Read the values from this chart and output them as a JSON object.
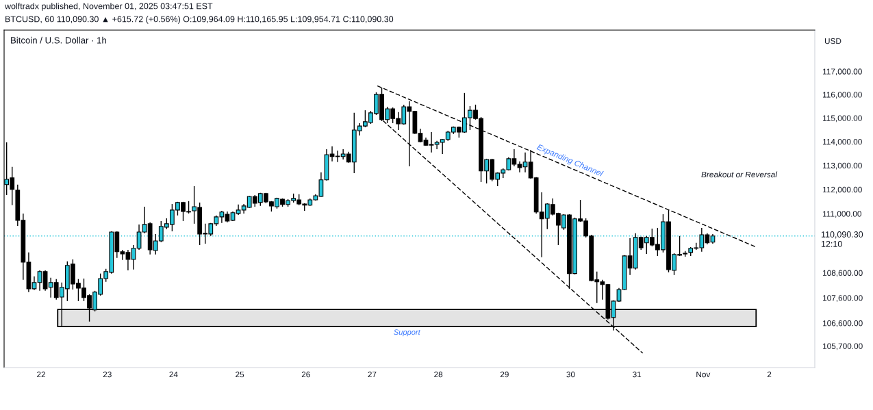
{
  "chart_data": {
    "type": "candlestick",
    "title": "Bitcoin / U.S. Dollar · 1h",
    "ylabel": "USD",
    "annotations": [
      "wolftradx published, November 01, 2025 03:47:51 EST",
      "BTCUSD, 60 110,090.30 ▲ +615.72 (+0.56%) O:109,964.09 H:110,165.95 L:109,954.71 C:110,090.30",
      "Expanding Channel",
      "Breakout or Reversal"
    ],
    "series": [
      {
        "x": [
          "2025-10-21T11:30",
          "2025-10-21T13:30",
          "2025-10-21T15:30",
          "2025-10-21T17:30",
          "2025-10-21T19:30",
          "2025-10-21T21:30",
          "2025-10-21T23:30",
          "2025-10-22T01:30",
          "2025-10-22T03:30",
          "2025-10-22T05:30",
          "2025-10-22T07:30",
          "2025-10-22T09:30",
          "2025-10-22T11:30",
          "2025-10-22T13:30",
          "2025-10-22T15:30",
          "2025-10-22T17:30",
          "2025-10-22T19:30",
          "2025-10-22T21:30",
          "2025-10-22T23:30",
          "2025-10-23T01:30",
          "2025-10-23T03:30",
          "2025-10-23T05:30",
          "2025-10-23T07:30",
          "2025-10-23T09:30",
          "2025-10-23T11:30",
          "2025-10-23T13:30",
          "2025-10-23T15:30",
          "2025-10-23T17:30",
          "2025-10-23T19:30",
          "2025-10-23T21:30",
          "2025-10-23T23:30",
          "2025-10-24T01:30",
          "2025-10-24T03:30",
          "2025-10-24T05:30",
          "2025-10-24T07:30",
          "2025-10-24T09:30",
          "2025-10-24T11:30",
          "2025-10-24T13:30",
          "2025-10-24T15:30",
          "2025-10-24T17:30",
          "2025-10-24T19:30",
          "2025-10-24T21:30",
          "2025-10-24T23:30",
          "2025-10-25T01:30",
          "2025-10-25T03:30",
          "2025-10-25T05:30",
          "2025-10-25T07:30",
          "2025-10-25T09:30",
          "2025-10-25T11:30",
          "2025-10-25T13:30",
          "2025-10-25T15:30",
          "2025-10-25T17:30",
          "2025-10-25T19:30",
          "2025-10-25T21:30",
          "2025-10-25T23:30",
          "2025-10-26T01:30",
          "2025-10-26T03:30",
          "2025-10-26T05:30",
          "2025-10-26T07:30",
          "2025-10-26T09:30",
          "2025-10-26T11:30",
          "2025-10-26T13:30",
          "2025-10-26T15:30",
          "2025-10-26T17:30",
          "2025-10-26T19:30",
          "2025-10-26T21:30",
          "2025-10-26T23:30",
          "2025-10-27T01:30",
          "2025-10-27T03:30",
          "2025-10-27T05:30",
          "2025-10-27T07:30",
          "2025-10-27T09:30",
          "2025-10-27T11:30",
          "2025-10-27T13:30",
          "2025-10-27T15:30",
          "2025-10-27T17:30",
          "2025-10-27T19:30",
          "2025-10-27T21:30",
          "2025-10-27T23:30",
          "2025-10-28T01:30",
          "2025-10-28T03:30",
          "2025-10-28T05:30",
          "2025-10-28T07:30",
          "2025-10-28T09:30",
          "2025-10-28T11:30",
          "2025-10-28T13:30",
          "2025-10-28T15:30",
          "2025-10-28T17:30",
          "2025-10-28T19:30",
          "2025-10-28T21:30",
          "2025-10-28T23:30",
          "2025-10-29T01:30",
          "2025-10-29T03:30",
          "2025-10-29T05:30",
          "2025-10-29T07:30",
          "2025-10-29T09:30",
          "2025-10-29T11:30",
          "2025-10-29T13:30",
          "2025-10-29T15:30",
          "2025-10-29T17:30",
          "2025-10-29T19:30",
          "2025-10-29T21:30",
          "2025-10-29T23:30",
          "2025-10-30T01:30",
          "2025-10-30T03:30",
          "2025-10-30T05:30",
          "2025-10-30T07:30",
          "2025-10-30T09:30",
          "2025-10-30T11:30",
          "2025-10-30T13:30",
          "2025-10-30T15:30",
          "2025-10-30T17:30",
          "2025-10-30T19:30",
          "2025-10-30T21:30",
          "2025-10-30T23:30",
          "2025-10-31T01:30",
          "2025-10-31T03:30",
          "2025-10-31T05:30",
          "2025-10-31T07:30",
          "2025-10-31T09:30",
          "2025-10-31T11:30",
          "2025-10-31T13:30",
          "2025-10-31T15:30",
          "2025-10-31T17:30",
          "2025-10-31T19:30",
          "2025-10-31T21:30",
          "2025-10-31T23:30",
          "2025-11-01T01:30",
          "2025-11-01T03:30"
        ],
        "ohlc": [
          [
            112200,
            113970,
            111770,
            112420
          ],
          [
            112480,
            112940,
            111350,
            112000
          ],
          [
            111970,
            112200,
            110500,
            110730
          ],
          [
            110730,
            111010,
            108320,
            109030
          ],
          [
            109030,
            109420,
            107830,
            107960
          ],
          [
            107960,
            108460,
            107910,
            108210
          ],
          [
            108210,
            108700,
            107880,
            108650
          ],
          [
            108650,
            108700,
            107880,
            107960
          ],
          [
            108020,
            108400,
            107610,
            108210
          ],
          [
            108210,
            108350,
            107530,
            107610
          ],
          [
            107630,
            108210,
            106470,
            108020
          ],
          [
            107960,
            109060,
            107470,
            108900
          ],
          [
            108950,
            109140,
            107930,
            108150
          ],
          [
            108180,
            108350,
            107470,
            107990
          ],
          [
            107990,
            108370,
            107470,
            107610
          ],
          [
            107690,
            107740,
            106660,
            107200
          ],
          [
            107120,
            107880,
            107060,
            107830
          ],
          [
            107740,
            108570,
            107690,
            108370
          ],
          [
            108370,
            108760,
            108240,
            108650
          ],
          [
            108620,
            110280,
            108570,
            110250
          ],
          [
            110250,
            110280,
            109200,
            109450
          ],
          [
            109450,
            109530,
            109120,
            109360
          ],
          [
            109420,
            109530,
            108700,
            109140
          ],
          [
            109140,
            109720,
            108730,
            109590
          ],
          [
            109590,
            110560,
            109530,
            110250
          ],
          [
            110250,
            111290,
            110200,
            110560
          ],
          [
            110590,
            110650,
            109340,
            109530
          ],
          [
            109500,
            110170,
            109340,
            109890
          ],
          [
            109890,
            110700,
            109840,
            110480
          ],
          [
            110450,
            110810,
            110370,
            110590
          ],
          [
            110560,
            111400,
            110280,
            111150
          ],
          [
            111150,
            111490,
            110930,
            111460
          ],
          [
            111460,
            111490,
            110700,
            111090
          ],
          [
            111070,
            111520,
            111010,
            111090
          ],
          [
            111120,
            112140,
            110590,
            111290
          ],
          [
            111260,
            111460,
            109720,
            110170
          ],
          [
            110170,
            110590,
            109780,
            110200
          ],
          [
            110170,
            110620,
            110090,
            110590
          ],
          [
            110590,
            110930,
            110500,
            110870
          ],
          [
            110870,
            111120,
            110620,
            111070
          ],
          [
            110980,
            111090,
            110650,
            110700
          ],
          [
            110730,
            111090,
            110700,
            111040
          ],
          [
            111010,
            111380,
            110950,
            111150
          ],
          [
            111150,
            111400,
            111010,
            111320
          ],
          [
            111260,
            111740,
            111240,
            111710
          ],
          [
            111710,
            111770,
            111290,
            111430
          ],
          [
            111460,
            111860,
            111320,
            111830
          ],
          [
            111830,
            111860,
            111430,
            111490
          ],
          [
            111490,
            111520,
            111090,
            111320
          ],
          [
            111290,
            111660,
            111210,
            111630
          ],
          [
            111600,
            111630,
            111290,
            111380
          ],
          [
            111380,
            111600,
            111290,
            111540
          ],
          [
            111540,
            111830,
            111460,
            111630
          ],
          [
            111570,
            111800,
            111350,
            111400
          ],
          [
            111400,
            111430,
            111120,
            111350
          ],
          [
            111350,
            111630,
            111320,
            111570
          ],
          [
            111570,
            111800,
            111540,
            111740
          ],
          [
            111710,
            112710,
            111690,
            112400
          ],
          [
            112400,
            113680,
            112370,
            113450
          ],
          [
            113480,
            113800,
            113170,
            113370
          ],
          [
            113370,
            113620,
            113140,
            113390
          ],
          [
            113370,
            113680,
            113250,
            113480
          ],
          [
            113480,
            113570,
            113110,
            113140
          ],
          [
            113140,
            115220,
            112680,
            114490
          ],
          [
            114460,
            114780,
            114260,
            114660
          ],
          [
            114660,
            115330,
            114610,
            114840
          ],
          [
            114810,
            115300,
            114750,
            115220
          ],
          [
            115190,
            116100,
            115130,
            116010
          ],
          [
            116010,
            116300,
            114870,
            114930
          ],
          [
            114930,
            115480,
            114780,
            115390
          ],
          [
            115390,
            115450,
            114780,
            114980
          ],
          [
            114980,
            115250,
            114490,
            114750
          ],
          [
            114750,
            115570,
            114720,
            115480
          ],
          [
            115480,
            115710,
            112960,
            115280
          ],
          [
            115280,
            115300,
            114320,
            114350
          ],
          [
            114350,
            114550,
            113970,
            114000
          ],
          [
            114060,
            114170,
            113830,
            113850
          ],
          [
            113850,
            114400,
            113540,
            113880
          ],
          [
            113880,
            114030,
            113680,
            113970
          ],
          [
            113970,
            114110,
            113480,
            114090
          ],
          [
            114090,
            114460,
            114030,
            114400
          ],
          [
            114400,
            114640,
            114320,
            114610
          ],
          [
            114610,
            114640,
            114170,
            114400
          ],
          [
            114400,
            116070,
            114370,
            115010
          ],
          [
            115010,
            115510,
            114490,
            115330
          ],
          [
            115330,
            115570,
            114930,
            114980
          ],
          [
            114980,
            115040,
            112310,
            112770
          ],
          [
            112770,
            113280,
            112250,
            113250
          ],
          [
            113250,
            113280,
            112340,
            112420
          ],
          [
            112420,
            112710,
            112140,
            112680
          ],
          [
            112680,
            112880,
            112480,
            112820
          ],
          [
            112820,
            113340,
            112790,
            113280
          ],
          [
            113280,
            113680,
            112960,
            113050
          ],
          [
            113050,
            113170,
            112710,
            112910
          ],
          [
            112940,
            113540,
            112710,
            113140
          ],
          [
            113140,
            113650,
            112450,
            112480
          ],
          [
            112480,
            112510,
            111010,
            111070
          ],
          [
            111070,
            111880,
            109230,
            110790
          ],
          [
            110810,
            111430,
            110370,
            111400
          ],
          [
            111380,
            111630,
            110930,
            110980
          ],
          [
            111010,
            111040,
            109720,
            110530
          ],
          [
            110420,
            110980,
            110340,
            110950
          ],
          [
            110950,
            110980,
            107960,
            108570
          ],
          [
            108570,
            110840,
            108540,
            110790
          ],
          [
            110790,
            111570,
            110670,
            110700
          ],
          [
            110700,
            110810,
            110030,
            110090
          ],
          [
            110090,
            110140,
            108260,
            108290
          ],
          [
            108320,
            108650,
            107390,
            108240
          ],
          [
            108240,
            108320,
            107530,
            108130
          ],
          [
            108130,
            108150,
            106740,
            106790
          ],
          [
            106820,
            107500,
            106310,
            107470
          ],
          [
            107470,
            107990,
            107440,
            107930
          ],
          [
            107930,
            109310,
            107910,
            109280
          ],
          [
            109280,
            110000,
            108510,
            108790
          ],
          [
            108790,
            110200,
            108730,
            110030
          ],
          [
            110030,
            110060,
            109530,
            109610
          ],
          [
            109810,
            110090,
            109360,
            110030
          ],
          [
            110030,
            110390,
            109670,
            109720
          ],
          [
            109750,
            110420,
            109280,
            109530
          ],
          [
            109530,
            110980,
            109420,
            110670
          ],
          [
            110670,
            111150,
            108620,
            108730
          ],
          [
            108700,
            109390,
            108510,
            109340
          ],
          [
            109310,
            110090,
            109280,
            109340
          ],
          [
            109390,
            109480,
            109250,
            109360
          ],
          [
            109420,
            109640,
            109280,
            109590
          ],
          [
            109590,
            109810,
            109530,
            109610
          ],
          [
            109610,
            110420,
            109450,
            110140
          ],
          [
            110140,
            110200,
            109750,
            109810
          ],
          [
            109840,
            110165.95,
            109780,
            110090.3
          ]
        ],
        "colors": [
          "#26c6da",
          "#000000",
          "#000000",
          "#000000",
          "#000000",
          "#26c6da",
          "#26c6da",
          "#000000",
          "#26c6da",
          "#000000",
          "#26c6da",
          "#26c6da",
          "#000000",
          "#000000",
          "#000000",
          "#000000",
          "#26c6da",
          "#26c6da",
          "#26c6da",
          "#26c6da",
          "#000000",
          "#000000",
          "#000000",
          "#26c6da",
          "#26c6da",
          "#26c6da",
          "#000000",
          "#26c6da",
          "#26c6da",
          "#26c6da",
          "#26c6da",
          "#26c6da",
          "#000000",
          "#26c6da",
          "#26c6da",
          "#000000",
          "#26c6da",
          "#26c6da",
          "#26c6da",
          "#26c6da",
          "#000000",
          "#26c6da",
          "#26c6da",
          "#26c6da",
          "#26c6da",
          "#000000",
          "#26c6da",
          "#000000",
          "#000000",
          "#26c6da",
          "#000000",
          "#26c6da",
          "#26c6da",
          "#000000",
          "#000000",
          "#26c6da",
          "#26c6da",
          "#26c6da",
          "#26c6da",
          "#000000",
          "#26c6da",
          "#26c6da",
          "#000000",
          "#26c6da",
          "#26c6da",
          "#26c6da",
          "#26c6da",
          "#26c6da",
          "#000000",
          "#26c6da",
          "#000000",
          "#000000",
          "#26c6da",
          "#000000",
          "#000000",
          "#000000",
          "#000000",
          "#26c6da",
          "#26c6da",
          "#26c6da",
          "#26c6da",
          "#26c6da",
          "#000000",
          "#26c6da",
          "#26c6da",
          "#000000",
          "#000000",
          "#26c6da",
          "#000000",
          "#26c6da",
          "#26c6da",
          "#26c6da",
          "#000000",
          "#000000",
          "#26c6da",
          "#000000",
          "#000000",
          "#000000",
          "#26c6da",
          "#000000",
          "#000000",
          "#26c6da",
          "#000000",
          "#26c6da",
          "#000000",
          "#000000",
          "#000000",
          "#000000",
          "#000000",
          "#000000",
          "#26c6da",
          "#26c6da",
          "#26c6da",
          "#000000",
          "#26c6da",
          "#000000",
          "#26c6da",
          "#000000",
          "#000000",
          "#26c6da",
          "#000000",
          "#26c6da",
          "#26c6da",
          "#000000",
          "#26c6da",
          "#26c6da",
          "#26c6da",
          "#000000",
          "#26c6da"
        ]
      },
      {
        "type": "line",
        "x": [
          "2025-10-27T02:00",
          "2025-11-01T19:00"
        ],
        "values": [
          116370,
          109650
        ],
        "color": "#000000"
      },
      {
        "type": "line",
        "x": [
          "2025-10-27T04:00",
          "2025-10-31T02:00"
        ],
        "values": [
          114880,
          105430
        ],
        "color": "#000000"
      }
    ],
    "bands": [
      {
        "axis": "y",
        "from": 106460,
        "to": 107140,
        "label": "Support",
        "color": "#e3e3e3"
      }
    ],
    "xlim": [
      "2025-10-21T10:35",
      "2025-11-02T16:30"
    ],
    "xticks": [
      {
        "value": "2025-10-22",
        "label": "22"
      },
      {
        "value": "2025-10-23",
        "label": "23"
      },
      {
        "value": "2025-10-24",
        "label": "24"
      },
      {
        "value": "2025-10-25",
        "label": "25"
      },
      {
        "value": "2025-10-26",
        "label": "26"
      },
      {
        "value": "2025-10-27",
        "label": "27"
      },
      {
        "value": "2025-10-28",
        "label": "28"
      },
      {
        "value": "2025-10-29",
        "label": "29"
      },
      {
        "value": "2025-10-30",
        "label": "30"
      },
      {
        "value": "2025-10-31",
        "label": "31"
      },
      {
        "value": "2025-11-01",
        "label": "Nov"
      },
      {
        "value": "2025-11-02",
        "label": "2"
      }
    ],
    "log": "y",
    "ylim": [
      104860,
      118800
    ],
    "yticks": [
      {
        "value": 117000,
        "label": "117,000.00"
      },
      {
        "value": 116000,
        "label": "116,000.00"
      },
      {
        "value": 115000,
        "label": "115,000.00"
      },
      {
        "value": 114000,
        "label": "114,000.00"
      },
      {
        "value": 113000,
        "label": "113,000.00"
      },
      {
        "value": 112000,
        "label": "112,000.00"
      },
      {
        "value": 111000,
        "label": "111,000.00"
      },
      {
        "value": 108600,
        "label": "108,600.00"
      },
      {
        "value": 107600,
        "label": "107,600.00"
      },
      {
        "value": 106600,
        "label": "106,600.00"
      },
      {
        "value": 105700,
        "label": "105,700.00"
      }
    ],
    "ref_lines": [
      {
        "axis": "y",
        "value": 110090.3,
        "label": "110,090.30\n12:10",
        "color": "#26c6da",
        "line_style": "dotted"
      }
    ],
    "line_style": "dashed"
  }
}
